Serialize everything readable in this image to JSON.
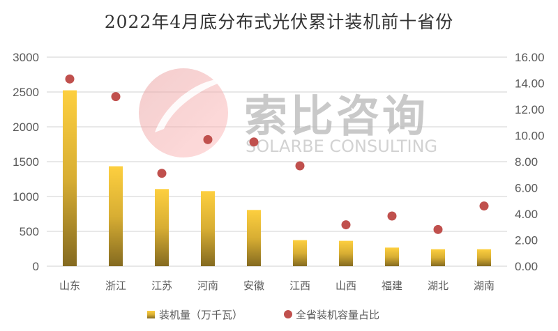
{
  "chart_data": {
    "type": "bar",
    "title": "2022年4月底分布式光伏累计装机前十省份",
    "categories": [
      "山东",
      "浙江",
      "江苏",
      "河南",
      "安徽",
      "江西",
      "山西",
      "福建",
      "湖北",
      "湖南"
    ],
    "series": [
      {
        "name": "装机量（万千瓦）",
        "type": "bar",
        "axis": "left",
        "color": "#F9C93C",
        "values": [
          2524,
          1434,
          1107,
          1077,
          807,
          374,
          364,
          267,
          244,
          244
        ]
      },
      {
        "name": "全省装机容量占比",
        "type": "scatter",
        "axis": "right",
        "color": "#C0504D",
        "values": [
          14.33,
          12.98,
          7.11,
          9.69,
          9.51,
          7.68,
          3.17,
          3.84,
          2.81,
          4.61
        ]
      }
    ],
    "ylim": [
      0,
      3000
    ],
    "yticks": [
      "0",
      "500",
      "1000",
      "1500",
      "2000",
      "2500",
      "3000"
    ],
    "y2lim": [
      0,
      16
    ],
    "y2ticks": [
      "0.00",
      "2.00",
      "4.00",
      "6.00",
      "8.00",
      "10.00",
      "12.00",
      "14.00",
      "16.00"
    ],
    "grid": true,
    "legend_position": "bottom"
  },
  "watermark": {
    "cn": "索比咨询",
    "en": "SOLARBE CONSULTING"
  }
}
